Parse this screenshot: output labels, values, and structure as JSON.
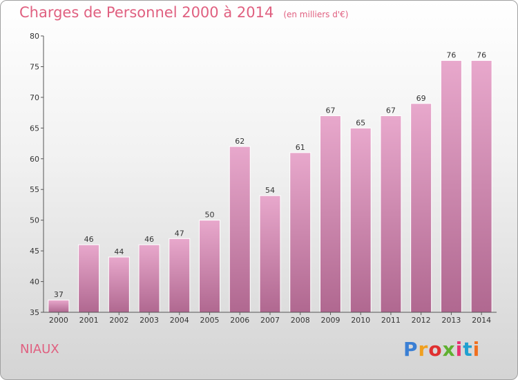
{
  "title": "Charges de Personnel 2000 à 2014",
  "subtitle": "(en milliers d'€)",
  "commune": "NIAUX",
  "logo": {
    "text": "Proxiti",
    "colors": [
      "#3a7fd4",
      "#f0a020",
      "#e03030",
      "#60b030",
      "#e83070",
      "#20a0d0",
      "#f07020"
    ]
  },
  "colors": {
    "accent": "#e06080",
    "bar_light": "#e8a8cc",
    "bar_dark": "#b06890"
  },
  "chart_data": {
    "type": "bar",
    "categories": [
      "2000",
      "2001",
      "2002",
      "2003",
      "2004",
      "2005",
      "2006",
      "2007",
      "2008",
      "2009",
      "2010",
      "2011",
      "2012",
      "2013",
      "2014"
    ],
    "values": [
      37,
      46,
      44,
      46,
      47,
      50,
      62,
      54,
      61,
      67,
      65,
      67,
      69,
      76,
      76
    ],
    "yticks": [
      35,
      40,
      45,
      50,
      55,
      60,
      65,
      70,
      75,
      80
    ],
    "ylim": [
      35,
      80
    ],
    "grid": false
  }
}
